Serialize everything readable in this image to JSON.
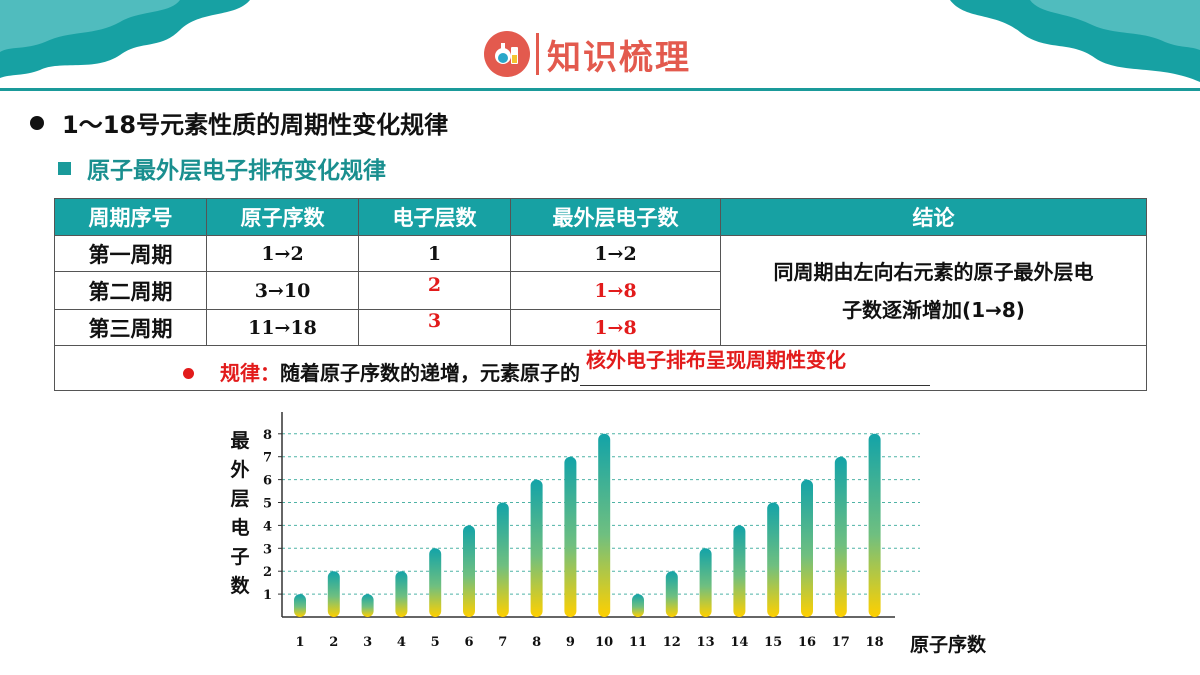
{
  "header": {
    "title": "知识梳理",
    "icon": "lab-flask-icon"
  },
  "section": {
    "bullet": "1～18号元素性质的周期性变化规律",
    "subheading": "原子最外层电子排布变化规律"
  },
  "table": {
    "headers": [
      "周期序号",
      "原子序数",
      "电子层数",
      "最外层电子数",
      "结论"
    ],
    "rows": [
      {
        "period": "第一周期",
        "atomic_numbers": "1→2",
        "shells": "1",
        "outer": "1→2"
      },
      {
        "period": "第二周期",
        "atomic_numbers": "3→10",
        "shells": "2",
        "outer": "1→8"
      },
      {
        "period": "第三周期",
        "atomic_numbers": "11→18",
        "shells": "3",
        "outer": "1→8"
      }
    ],
    "conclusion_line1": "同周期由左向右元素的原子最外层电",
    "conclusion_line2": "子数逐渐增加(1→8)",
    "rule_label": "规律：",
    "rule_text": "随着原子序数的递增，元素原子的",
    "rule_answer": "核外电子排布呈现周期性变化"
  },
  "colors": {
    "accent": "#17a1a3",
    "answer": "#e21b1b",
    "bar_top": "#13a3a8",
    "bar_bottom": "#ffd000"
  },
  "chart_data": {
    "type": "bar",
    "categories": [
      "1",
      "2",
      "3",
      "4",
      "5",
      "6",
      "7",
      "8",
      "9",
      "10",
      "11",
      "12",
      "13",
      "14",
      "15",
      "16",
      "17",
      "18"
    ],
    "values": [
      1,
      2,
      1,
      2,
      3,
      4,
      5,
      6,
      7,
      8,
      1,
      2,
      3,
      4,
      5,
      6,
      7,
      8
    ],
    "ylabel_chars": [
      "最",
      "外",
      "层",
      "电",
      "子",
      "数"
    ],
    "xlabel": "原子序数",
    "yticks": [
      1,
      2,
      3,
      4,
      5,
      6,
      7,
      8
    ],
    "ylim": [
      0,
      8
    ],
    "grid": true
  }
}
